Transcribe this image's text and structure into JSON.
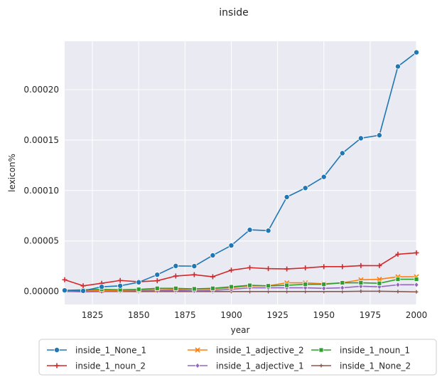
{
  "chart_data": {
    "type": "line",
    "title": "inside",
    "xlabel": "year",
    "ylabel": "lexicon%",
    "xlim": [
      1810,
      2000
    ],
    "ylim": [
      -1.3e-05,
      0.000248
    ],
    "xticks": [
      1825,
      1850,
      1875,
      1900,
      1925,
      1950,
      1975,
      2000
    ],
    "yticks": [
      0,
      5e-05,
      0.0001,
      0.00015,
      0.0002
    ],
    "ytick_labels": [
      "0.00000",
      "0.00005",
      "0.00010",
      "0.00015",
      "0.00020"
    ],
    "x": [
      1810,
      1820,
      1830,
      1840,
      1850,
      1860,
      1870,
      1880,
      1890,
      1900,
      1910,
      1920,
      1930,
      1940,
      1950,
      1960,
      1970,
      1980,
      1990,
      2000
    ],
    "grid": true,
    "legend_position": "below",
    "series": [
      {
        "name": "inside_1_None_1",
        "color": "#1f77b4",
        "marker": "circle",
        "values": [
          1e-06,
          5e-07,
          4.5e-06,
          5.5e-06,
          9e-06,
          1.65e-05,
          2.52e-05,
          2.5e-05,
          3.57e-05,
          4.55e-05,
          6.1e-05,
          6.02e-05,
          9.35e-05,
          0.0001025,
          0.0001135,
          0.000137,
          0.0001518,
          0.0001548,
          0.000223,
          0.000237
        ]
      },
      {
        "name": "inside_1_adjective_2",
        "color": "#ff7f0e",
        "marker": "x",
        "values": [
          1e-06,
          5e-07,
          1e-06,
          1e-06,
          1.5e-06,
          1.5e-06,
          2e-06,
          2e-06,
          2.5e-06,
          3.5e-06,
          5.5e-06,
          5.5e-06,
          8.5e-06,
          8.5e-06,
          7.5e-06,
          8.5e-06,
          1.15e-05,
          1.2e-05,
          1.45e-05,
          1.45e-05
        ]
      },
      {
        "name": "inside_1_noun_1",
        "color": "#2ca02c",
        "marker": "square",
        "values": [
          1e-06,
          1.5e-06,
          2e-06,
          1.5e-06,
          2e-06,
          3e-06,
          3e-06,
          2.5e-06,
          3e-06,
          4.5e-06,
          6e-06,
          5.5e-06,
          6e-06,
          7e-06,
          7e-06,
          8.5e-06,
          8.5e-06,
          8e-06,
          1.2e-05,
          1.2e-05
        ]
      },
      {
        "name": "inside_1_noun_2",
        "color": "#d62728",
        "marker": "plus",
        "values": [
          1.15e-05,
          5.5e-06,
          8e-06,
          1.08e-05,
          9.5e-06,
          1.05e-05,
          1.52e-05,
          1.65e-05,
          1.45e-05,
          2.1e-05,
          2.35e-05,
          2.25e-05,
          2.22e-05,
          2.32e-05,
          2.45e-05,
          2.45e-05,
          2.55e-05,
          2.55e-05,
          3.68e-05,
          3.82e-05
        ]
      },
      {
        "name": "inside_1_adjective_1",
        "color": "#9467bd",
        "marker": "diamond",
        "values": [
          2e-07,
          -5e-07,
          -2e-07,
          2e-07,
          1e-06,
          5e-07,
          1e-06,
          5e-07,
          1e-06,
          2e-06,
          3.5e-06,
          3.5e-06,
          3.5e-06,
          3.5e-06,
          3e-06,
          3.5e-06,
          5e-06,
          4.5e-06,
          6.5e-06,
          6.5e-06
        ]
      },
      {
        "name": "inside_1_None_2",
        "color": "#8c564b",
        "marker": "plus-small",
        "values": [
          -2e-07,
          -2e-07,
          -2e-07,
          -2e-07,
          -2e-07,
          -2e-07,
          -2e-07,
          -2e-07,
          -2e-07,
          -2e-07,
          -2e-07,
          -2e-07,
          -2e-07,
          -2e-07,
          -2e-07,
          -2e-07,
          1e-07,
          1e-07,
          -2e-07,
          -5e-07
        ]
      }
    ]
  }
}
